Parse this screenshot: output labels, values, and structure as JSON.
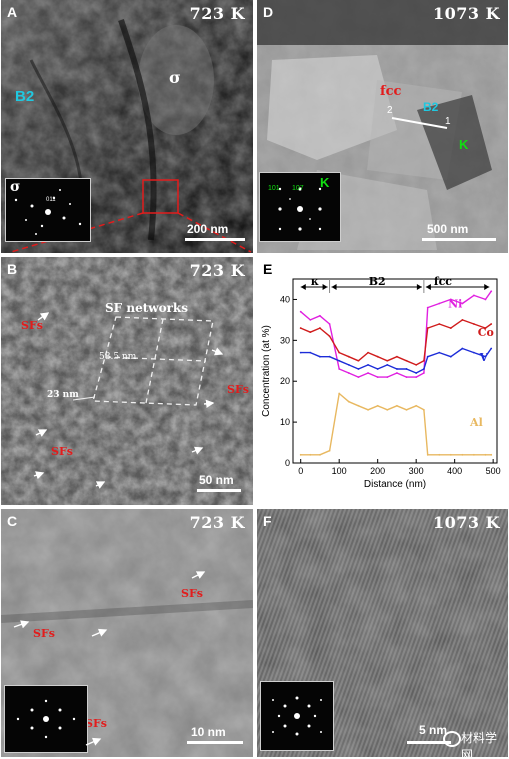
{
  "panels": {
    "A": {
      "label": "A",
      "temp": "723 K",
      "phase_b2": "B2",
      "phase_sigma": "σ",
      "inset_label": "σ",
      "inset_index": "011",
      "scale": "200 nm"
    },
    "D": {
      "label": "D",
      "temp": "1073 K",
      "phase_fcc": "fcc",
      "phase_b2": "B2",
      "phase_k": "K",
      "line_start": "2",
      "line_end": "1",
      "inset_idx1": "101",
      "inset_idx2": "107",
      "inset_label": "K",
      "scale": "500 nm"
    },
    "B": {
      "label": "B",
      "temp": "723 K",
      "networks": "SF networks",
      "dim1": "58.5 nm",
      "dim2": "23 nm",
      "sfs": "SFs",
      "scale": "50 nm"
    },
    "C": {
      "label": "C",
      "temp": "723 K",
      "sfs": "SFs",
      "scale": "10 nm"
    },
    "F": {
      "label": "F",
      "temp": "1073 K",
      "scale": "5 nm"
    },
    "E": {
      "label": "E"
    }
  },
  "watermark": "材料学网",
  "colors": {
    "ni": "#e020e0",
    "co": "#d01c1c",
    "v": "#1c2cd8",
    "al": "#e8b860",
    "cyan": "#20c8e0",
    "green": "#10e010",
    "red": "#e21c1c"
  },
  "chart_data": {
    "type": "line",
    "xlabel": "Distance (nm)",
    "ylabel": "Concentration (at %)",
    "xlim": [
      -20,
      510
    ],
    "ylim": [
      0,
      45
    ],
    "xticks": [
      0,
      100,
      200,
      300,
      400,
      500
    ],
    "yticks": [
      0,
      10,
      20,
      30,
      40
    ],
    "regions": [
      {
        "name": "κ",
        "x0": -5,
        "x1": 75
      },
      {
        "name": "B2",
        "x0": 75,
        "x1": 320
      },
      {
        "name": "fcc",
        "x0": 320,
        "x1": 495
      }
    ],
    "x": [
      0,
      25,
      50,
      75,
      100,
      125,
      150,
      175,
      200,
      225,
      250,
      275,
      300,
      320,
      330,
      360,
      390,
      420,
      450,
      480,
      495
    ],
    "series": [
      {
        "name": "Ni",
        "color": "#e020e0",
        "values": [
          37,
          35,
          36,
          34,
          23,
          22,
          21,
          22,
          21,
          21,
          22,
          21,
          21,
          22,
          38,
          39,
          40,
          39,
          41,
          40,
          42
        ]
      },
      {
        "name": "Co",
        "color": "#d01c1c",
        "values": [
          33,
          32,
          33,
          31,
          27,
          26,
          25,
          27,
          26,
          25,
          26,
          25,
          24,
          25,
          33,
          34,
          33,
          35,
          34,
          33,
          34
        ]
      },
      {
        "name": "V",
        "color": "#1c2cd8",
        "values": [
          27,
          27,
          26,
          26,
          25,
          24,
          23,
          24,
          23,
          24,
          23,
          23,
          22,
          23,
          26,
          27,
          26,
          28,
          27,
          26,
          28
        ]
      },
      {
        "name": "Al",
        "color": "#e8b860",
        "values": [
          2,
          2,
          2,
          3,
          17,
          15,
          14,
          13,
          14,
          13,
          14,
          13,
          14,
          13,
          2,
          2,
          2,
          2,
          2,
          2,
          2
        ]
      }
    ]
  }
}
